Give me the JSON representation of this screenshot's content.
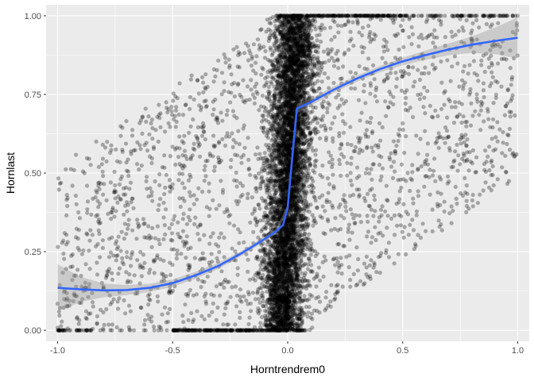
{
  "chart_data": {
    "type": "scatter",
    "xlabel": "Horntrendrem0",
    "ylabel": "Hornlast",
    "xlim": [
      -1.05,
      1.05
    ],
    "ylim": [
      -0.035,
      1.035
    ],
    "x_ticks": [
      -1.0,
      -0.5,
      0.0,
      0.5,
      1.0
    ],
    "x_tick_labels": [
      "-1.0",
      "-0.5",
      "0.0",
      "0.5",
      "1.0"
    ],
    "y_ticks": [
      0.0,
      0.25,
      0.5,
      0.75,
      1.0
    ],
    "y_tick_labels": [
      "0.00",
      "0.25",
      "0.50",
      "0.75",
      "1.00"
    ],
    "grid": true,
    "panel_background": "#ebebeb",
    "grid_color": "#ffffff",
    "point_color": "#000000",
    "point_alpha": 0.3,
    "smooth_color": "#3366ff",
    "ribbon_color": "#999999",
    "scatter_description": "dense cloud of several thousand points concentrated in a diagonal band from (-1, 0) to (1, 1), with a very dense vertical cluster near x = 0 spanning y 0 to 1, horizontal bands of points at y = 0 (x from -0.5 to 0.08) and y = 1 (x from -0.05 to 1.0)",
    "smooth_line": {
      "x": [
        -1.0,
        -0.9,
        -0.8,
        -0.7,
        -0.6,
        -0.5,
        -0.4,
        -0.3,
        -0.2,
        -0.1,
        -0.05,
        -0.02,
        0.0,
        0.02,
        0.04,
        0.1,
        0.2,
        0.3,
        0.4,
        0.5,
        0.6,
        0.7,
        0.8,
        0.9,
        1.0
      ],
      "y": [
        0.135,
        0.13,
        0.127,
        0.128,
        0.135,
        0.15,
        0.175,
        0.205,
        0.245,
        0.29,
        0.315,
        0.335,
        0.39,
        0.55,
        0.705,
        0.725,
        0.765,
        0.8,
        0.83,
        0.855,
        0.875,
        0.893,
        0.908,
        0.92,
        0.93
      ]
    },
    "ribbon": {
      "x": [
        -1.0,
        -0.9,
        -0.8,
        -0.7,
        -0.6,
        -0.5,
        -0.4,
        -0.3,
        -0.2,
        -0.1,
        -0.05,
        0.0,
        0.02,
        0.04,
        0.1,
        0.2,
        0.3,
        0.4,
        0.5,
        0.6,
        0.7,
        0.8,
        0.9,
        1.0
      ],
      "lower": [
        0.06,
        0.09,
        0.105,
        0.112,
        0.122,
        0.138,
        0.164,
        0.195,
        0.237,
        0.282,
        0.307,
        0.38,
        0.53,
        0.69,
        0.713,
        0.755,
        0.79,
        0.82,
        0.843,
        0.86,
        0.874,
        0.882,
        0.878,
        0.865
      ],
      "upper": [
        0.21,
        0.17,
        0.149,
        0.144,
        0.148,
        0.162,
        0.186,
        0.215,
        0.253,
        0.298,
        0.323,
        0.4,
        0.57,
        0.72,
        0.737,
        0.775,
        0.81,
        0.84,
        0.867,
        0.89,
        0.912,
        0.934,
        0.962,
        0.995
      ]
    }
  }
}
